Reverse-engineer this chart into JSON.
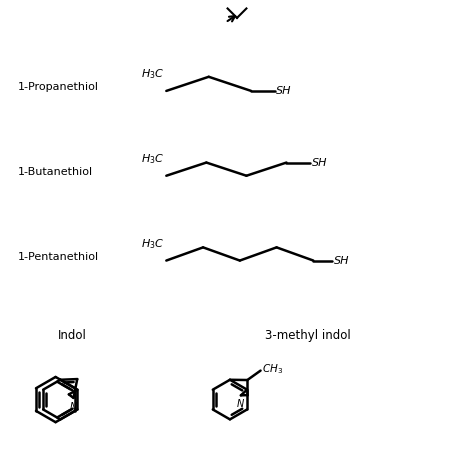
{
  "bg_color": "#ffffff",
  "label_color": "#000000",
  "line_color": "#000000",
  "line_width": 1.8,
  "thiol_labels": [
    "1-Propanethiol",
    "1-Butanethiol",
    "1-Pentanethiol"
  ],
  "indol_labels": [
    "Indol",
    "3-methyl indol"
  ],
  "fig_width": 4.74,
  "fig_height": 4.74,
  "dpi": 100
}
